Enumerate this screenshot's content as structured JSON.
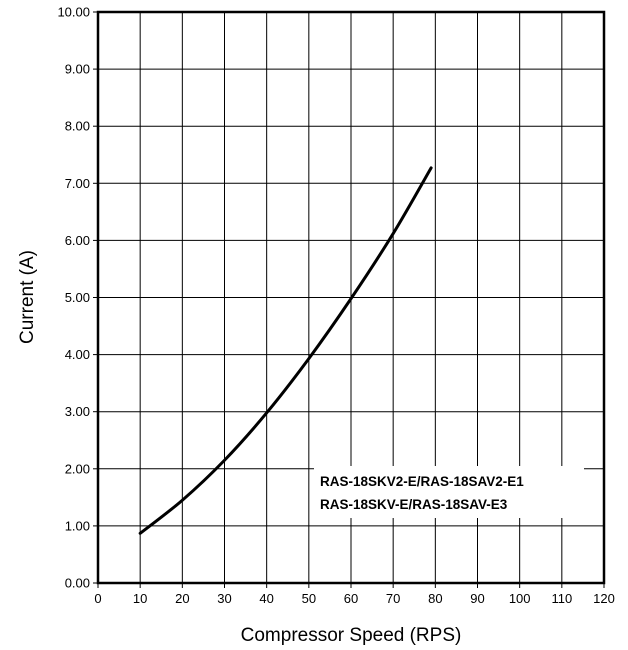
{
  "chart_data": {
    "type": "line",
    "title": "",
    "xlabel": "Compressor Speed (RPS)",
    "ylabel": "Current (A)",
    "xlim": [
      0,
      120
    ],
    "ylim": [
      0,
      10
    ],
    "x_ticks": [
      0,
      10,
      20,
      30,
      40,
      50,
      60,
      70,
      80,
      90,
      100,
      110,
      120
    ],
    "x_tick_labels": [
      "0",
      "10",
      "20",
      "30",
      "40",
      "50",
      "60",
      "70",
      "80",
      "90",
      "100",
      "110",
      "120"
    ],
    "y_ticks": [
      0,
      1,
      2,
      3,
      4,
      5,
      6,
      7,
      8,
      9,
      10
    ],
    "y_tick_labels": [
      "0.00",
      "1.00",
      "2.00",
      "3.00",
      "4.00",
      "5.00",
      "6.00",
      "7.00",
      "8.00",
      "9.00",
      "10.00"
    ],
    "grid": true,
    "legend_position": "lower-right",
    "legend_lines": [
      "RAS-18SKV2-E/RAS-18SAV2-E1",
      "RAS-18SKV-E/RAS-18SAV-E3"
    ],
    "series": [
      {
        "color": "#000000",
        "x": [
          10,
          20,
          30,
          40,
          50,
          60,
          70,
          79
        ],
        "y": [
          0.87,
          1.45,
          2.15,
          2.98,
          3.93,
          4.98,
          6.12,
          7.27
        ]
      }
    ]
  }
}
